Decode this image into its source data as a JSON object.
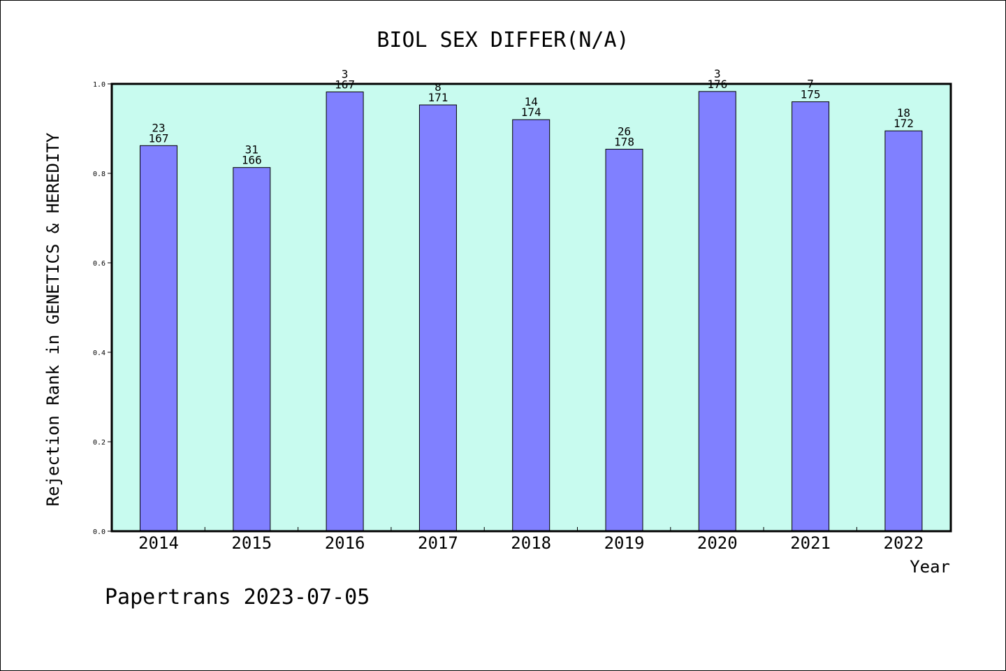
{
  "chart_data": {
    "type": "bar",
    "title": "BIOL SEX DIFFER(N/A)",
    "xlabel": "Year",
    "ylabel": "Rejection Rank in GENETICS & HEREDITY",
    "categories": [
      "2014",
      "2015",
      "2016",
      "2017",
      "2018",
      "2019",
      "2020",
      "2021",
      "2022"
    ],
    "values": [
      0.862,
      0.813,
      0.982,
      0.953,
      0.92,
      0.854,
      0.983,
      0.96,
      0.895
    ],
    "ranks": [
      "23",
      "31",
      "3",
      "8",
      "14",
      "26",
      "3",
      "7",
      "18"
    ],
    "totals": [
      "167",
      "166",
      "167",
      "171",
      "174",
      "178",
      "176",
      "175",
      "172"
    ],
    "ylim": [
      0,
      1.0
    ],
    "yticks": [
      "0.0",
      "0.2",
      "0.4",
      "0.6",
      "0.8",
      "1.0"
    ],
    "grid": false,
    "colors": {
      "bar": "#8080ff",
      "plot_background": "#c8fbef",
      "axis": "#000000"
    }
  },
  "footer": {
    "text": "Papertrans 2023-07-05"
  }
}
